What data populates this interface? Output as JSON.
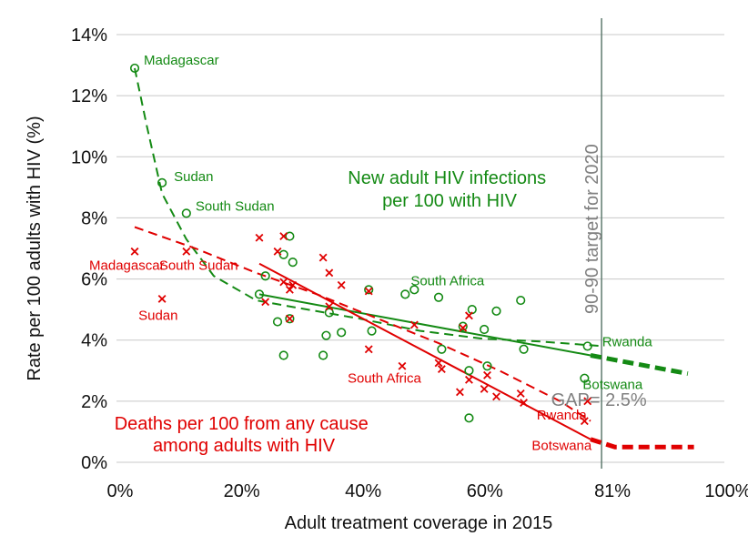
{
  "chart_data": {
    "type": "scatter",
    "xlabel": "Adult treatment coverage in 2015",
    "ylabel": "Rate per 100 adults with HIV (%)",
    "xlim": [
      0,
      100
    ],
    "ylim": [
      0,
      14
    ],
    "x_ticks": [
      {
        "value": 0,
        "label": "0%"
      },
      {
        "value": 20,
        "label": "20%"
      },
      {
        "value": 40,
        "label": "40%"
      },
      {
        "value": 60,
        "label": "60%"
      },
      {
        "value": 81,
        "label": "81%"
      },
      {
        "value": 100,
        "label": "100%"
      }
    ],
    "y_ticks": [
      {
        "value": 0,
        "label": "0%"
      },
      {
        "value": 2,
        "label": "2%"
      },
      {
        "value": 4,
        "label": "4%"
      },
      {
        "value": 6,
        "label": "6%"
      },
      {
        "value": 8,
        "label": "8%"
      },
      {
        "value": 10,
        "label": "10%"
      },
      {
        "value": 12,
        "label": "12%"
      },
      {
        "value": 14,
        "label": "14%"
      }
    ],
    "grid": "horizontal",
    "target_line": {
      "x": 81,
      "label": "90-90 target for 2020"
    },
    "gap_label": "GAP= 2.5%",
    "series": [
      {
        "name": "New adult HIV infections per 100 with HIV",
        "title_lines": [
          "New adult HIV infections",
          "per 100 with HIV"
        ],
        "marker": "circle",
        "color": "#148a14",
        "points": [
          [
            3,
            12.9
          ],
          [
            7.5,
            9.15
          ],
          [
            11.5,
            8.15
          ],
          [
            23.5,
            5.5
          ],
          [
            24.5,
            6.1
          ],
          [
            26.5,
            4.6
          ],
          [
            27.5,
            3.5
          ],
          [
            27.5,
            6.8
          ],
          [
            28.5,
            7.4
          ],
          [
            28.5,
            4.7
          ],
          [
            29,
            6.55
          ],
          [
            34,
            3.5
          ],
          [
            34.5,
            4.15
          ],
          [
            35,
            4.9
          ],
          [
            37,
            4.25
          ],
          [
            41.5,
            5.65
          ],
          [
            42,
            4.3
          ],
          [
            47.5,
            5.5
          ],
          [
            49,
            5.65
          ],
          [
            53,
            5.4
          ],
          [
            53.5,
            3.7
          ],
          [
            57,
            4.45
          ],
          [
            58,
            1.45
          ],
          [
            58,
            3.0
          ],
          [
            58.5,
            5.0
          ],
          [
            60.5,
            4.35
          ],
          [
            61,
            3.15
          ],
          [
            62.5,
            4.95
          ],
          [
            66.5,
            5.3
          ],
          [
            67,
            3.7
          ],
          [
            77,
            2.75
          ],
          [
            77.5,
            3.8
          ]
        ],
        "point_labels": [
          {
            "text": "Madagascar",
            "x": 3,
            "y": 12.9
          },
          {
            "text": "Sudan",
            "x": 7.5,
            "y": 9.15
          },
          {
            "text": "South Sudan",
            "x": 11.5,
            "y": 8.15
          },
          {
            "text": "South Africa",
            "x": 49,
            "y": 5.65
          },
          {
            "text": "Rwanda",
            "x": 77.5,
            "y": 3.8
          },
          {
            "text": "Botswana",
            "x": 77,
            "y": 2.75
          }
        ],
        "trend_smooth": [
          [
            3,
            12.9
          ],
          [
            5,
            11
          ],
          [
            7.5,
            8.8
          ],
          [
            11.5,
            7.3
          ],
          [
            16,
            6.1
          ],
          [
            23,
            5.3
          ],
          [
            30,
            5.05
          ],
          [
            40,
            4.7
          ],
          [
            50,
            4.3
          ],
          [
            60,
            4.05
          ],
          [
            70,
            3.95
          ],
          [
            80,
            3.8
          ]
        ],
        "trend_linear": [
          [
            23.5,
            5.5
          ],
          [
            78,
            3.5
          ]
        ],
        "projection": [
          [
            78,
            3.5
          ],
          [
            94,
            2.9
          ]
        ]
      },
      {
        "name": "Deaths per 100 from any cause among adults with HIV",
        "title_lines": [
          "Deaths per 100 from any cause",
          "among adults with HIV"
        ],
        "marker": "x",
        "color": "#e00000",
        "points": [
          [
            3,
            6.9
          ],
          [
            7.5,
            5.35
          ],
          [
            11.5,
            6.9
          ],
          [
            23.5,
            7.35
          ],
          [
            24.5,
            5.25
          ],
          [
            26.5,
            6.9
          ],
          [
            27.5,
            5.9
          ],
          [
            27.5,
            7.4
          ],
          [
            28.5,
            5.65
          ],
          [
            29,
            5.8
          ],
          [
            28.5,
            4.7
          ],
          [
            34,
            6.7
          ],
          [
            35,
            6.2
          ],
          [
            35,
            5.1
          ],
          [
            37,
            5.8
          ],
          [
            41.5,
            3.7
          ],
          [
            41.5,
            5.6
          ],
          [
            47,
            3.15
          ],
          [
            49,
            4.5
          ],
          [
            53,
            3.25
          ],
          [
            53.5,
            3.05
          ],
          [
            56.5,
            2.3
          ],
          [
            57,
            4.4
          ],
          [
            58,
            4.8
          ],
          [
            58,
            2.7
          ],
          [
            60.5,
            2.4
          ],
          [
            61,
            2.85
          ],
          [
            62.5,
            2.15
          ],
          [
            66.5,
            2.25
          ],
          [
            67,
            1.95
          ],
          [
            77,
            1.35
          ],
          [
            77.5,
            2.0
          ]
        ],
        "point_labels": [
          {
            "text": "Madagascar",
            "x": 3,
            "y": 6.9
          },
          {
            "text": "Sudan",
            "x": 7.5,
            "y": 5.35
          },
          {
            "text": "South Sudan",
            "x": 11.5,
            "y": 6.9
          },
          {
            "text": "South Africa",
            "x": 47,
            "y": 3.15
          },
          {
            "text": "Rwanda",
            "x": 77.5,
            "y": 2.0
          },
          {
            "text": "Botswana",
            "x": 77,
            "y": 1.35
          }
        ],
        "trend_smooth": [
          [
            3,
            7.7
          ],
          [
            13,
            7.0
          ],
          [
            23,
            6.2
          ],
          [
            33,
            5.5
          ],
          [
            43,
            4.7
          ],
          [
            53,
            3.9
          ],
          [
            63,
            3.0
          ],
          [
            73,
            2.0
          ],
          [
            78,
            1.35
          ]
        ],
        "trend_linear": [
          [
            23.5,
            6.5
          ],
          [
            78,
            0.75
          ]
        ],
        "projection": [
          [
            78,
            0.75
          ],
          [
            82,
            0.5
          ],
          [
            95,
            0.5
          ]
        ]
      }
    ]
  }
}
